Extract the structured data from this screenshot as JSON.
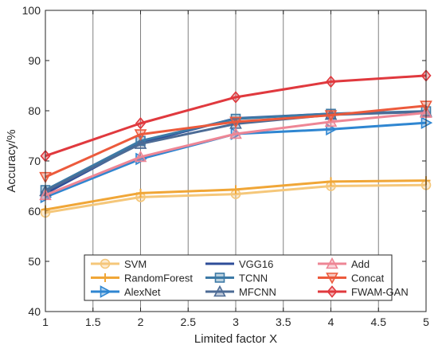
{
  "chart_data": {
    "type": "line",
    "title": "",
    "xlabel": "Limited factor X",
    "ylabel": "Accuracy/%",
    "xlim": [
      1,
      5
    ],
    "ylim": [
      40,
      100
    ],
    "xticks": [
      "1",
      "1.5",
      "2",
      "2.5",
      "3",
      "3.5",
      "4",
      "4.5",
      "5"
    ],
    "yticks": [
      "40",
      "50",
      "60",
      "70",
      "80",
      "90",
      "100"
    ],
    "grid": "vertical",
    "legend_position": "bottom-center",
    "x": [
      1,
      2,
      3,
      4,
      5
    ],
    "series": [
      {
        "name": "SVM",
        "color": "#F5C77A",
        "marker": "circle",
        "values": [
          59.7,
          62.8,
          63.4,
          65.0,
          65.2
        ]
      },
      {
        "name": "RandomForest",
        "color": "#F0A637",
        "marker": "plus",
        "values": [
          60.3,
          63.6,
          64.3,
          65.9,
          66.1
        ]
      },
      {
        "name": "AlexNet",
        "color": "#2F86D1",
        "marker": "triangle-right",
        "values": [
          62.8,
          70.4,
          75.4,
          76.3,
          77.6
        ]
      },
      {
        "name": "VGG16",
        "color": "#2E4D99",
        "marker": "none",
        "values": [
          63.5,
          73.6,
          78.5,
          79.4,
          79.8
        ]
      },
      {
        "name": "TCNN",
        "color": "#3D7AA6",
        "marker": "square",
        "values": [
          64.2,
          74.0,
          78.4,
          79.4,
          79.9
        ]
      },
      {
        "name": "MFCNN",
        "color": "#4C6B95",
        "marker": "triangle-up",
        "values": [
          64.0,
          73.4,
          77.4,
          79.2,
          79.8
        ]
      },
      {
        "name": "Add",
        "color": "#EE8695",
        "marker": "triangle-up",
        "values": [
          63.2,
          70.8,
          75.4,
          77.8,
          79.6
        ]
      },
      {
        "name": "Concat",
        "color": "#EC5A3C",
        "marker": "triangle-down",
        "values": [
          66.8,
          75.3,
          77.8,
          79.1,
          81.0
        ]
      },
      {
        "name": "FWAM-GAN",
        "color": "#E0393E",
        "marker": "diamond",
        "values": [
          71.0,
          77.5,
          82.7,
          85.8,
          87.0
        ]
      }
    ]
  }
}
